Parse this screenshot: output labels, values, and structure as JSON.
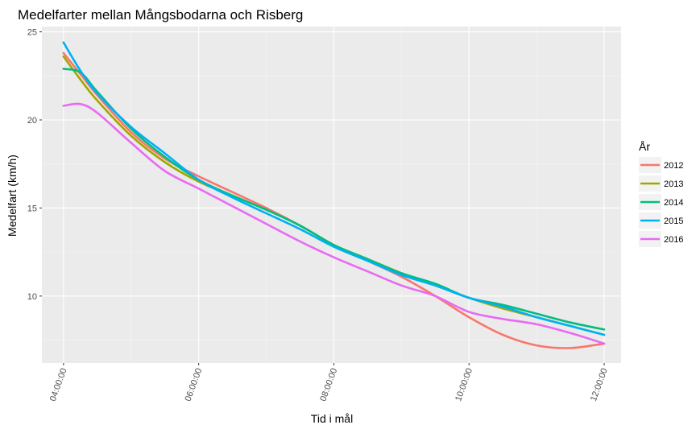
{
  "chart_data": {
    "type": "line",
    "title": "Medelfarter mellan Mångsbodarna och Risberg",
    "xlabel": "Tid i mål",
    "ylabel": "Medelfart (km/h)",
    "xlim": [
      3.68,
      12.25
    ],
    "ylim": [
      6.2,
      25.3
    ],
    "x_ticks": [
      4,
      6,
      8,
      10,
      12
    ],
    "x_tick_labels": [
      "04:00:00",
      "06:00:00",
      "08:00:00",
      "10:00:00",
      "12:00:00"
    ],
    "y_ticks": [
      10,
      15,
      20,
      25
    ],
    "y_tick_labels": [
      "10",
      "15",
      "20",
      "25"
    ],
    "grid": true,
    "legend": {
      "title": "År",
      "position": "right"
    },
    "series": [
      {
        "name": "2012",
        "color": "#F8766D",
        "x": [
          4.0,
          4.25,
          4.5,
          5.0,
          5.5,
          6.0,
          6.5,
          7.0,
          7.5,
          8.0,
          8.5,
          9.0,
          9.5,
          10.0,
          10.5,
          11.0,
          11.5,
          12.0
        ],
        "y": [
          23.8,
          22.6,
          21.4,
          19.3,
          17.8,
          16.8,
          15.9,
          15.0,
          14.0,
          12.9,
          12.0,
          11.1,
          10.0,
          8.8,
          7.8,
          7.2,
          7.05,
          7.3
        ]
      },
      {
        "name": "2013",
        "color": "#A3A500",
        "x": [
          4.0,
          4.25,
          4.5,
          5.0,
          5.5,
          6.0,
          6.5,
          7.0,
          7.5,
          8.0,
          8.5,
          9.0,
          9.5,
          10.0,
          10.5,
          11.0,
          11.5,
          12.0
        ],
        "y": [
          23.6,
          22.3,
          21.1,
          19.1,
          17.6,
          16.5,
          15.7,
          14.9,
          14.0,
          12.9,
          12.1,
          11.3,
          10.6,
          9.9,
          9.3,
          8.8,
          8.3,
          7.8
        ]
      },
      {
        "name": "2014",
        "color": "#00BF7D",
        "x": [
          4.0,
          4.25,
          4.5,
          5.0,
          5.5,
          6.0,
          6.5,
          7.0,
          7.5,
          8.0,
          8.5,
          9.0,
          9.5,
          10.0,
          10.5,
          11.0,
          11.5,
          12.0
        ],
        "y": [
          22.9,
          22.7,
          21.6,
          19.5,
          17.9,
          16.6,
          15.7,
          14.9,
          14.0,
          12.9,
          12.1,
          11.3,
          10.7,
          9.9,
          9.5,
          9.0,
          8.5,
          8.1
        ]
      },
      {
        "name": "2015",
        "color": "#00B0F6",
        "x": [
          4.0,
          4.25,
          4.5,
          5.0,
          5.5,
          6.0,
          6.5,
          7.0,
          7.5,
          8.0,
          8.5,
          9.0,
          9.5,
          10.0,
          10.5,
          11.0,
          11.5,
          12.0
        ],
        "y": [
          24.4,
          22.8,
          21.5,
          19.6,
          18.1,
          16.6,
          15.6,
          14.7,
          13.8,
          12.8,
          12.0,
          11.2,
          10.6,
          9.9,
          9.4,
          8.8,
          8.3,
          7.8
        ]
      },
      {
        "name": "2016",
        "color": "#E76BF3",
        "x": [
          4.0,
          4.25,
          4.5,
          5.0,
          5.5,
          6.0,
          6.5,
          7.0,
          7.5,
          8.0,
          8.5,
          9.0,
          9.5,
          10.0,
          10.5,
          11.0,
          11.5,
          12.0
        ],
        "y": [
          20.8,
          20.9,
          20.4,
          18.7,
          17.1,
          16.1,
          15.1,
          14.1,
          13.1,
          12.2,
          11.4,
          10.6,
          10.0,
          9.1,
          8.7,
          8.4,
          7.9,
          7.3
        ]
      }
    ]
  }
}
